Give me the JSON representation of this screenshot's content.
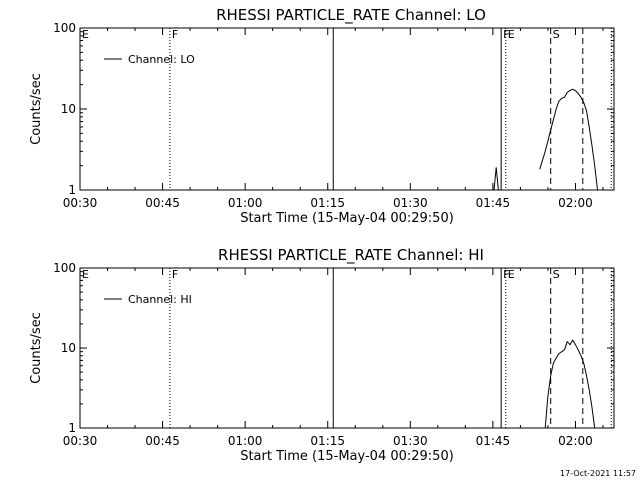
{
  "chart_data": [
    {
      "type": "line",
      "title": "RHESSI PARTICLE_RATE Channel: LO",
      "xlabel": "Start Time (15-May-04 00:29:50)",
      "ylabel": "Counts/sec",
      "yscale": "log",
      "ylim": [
        1,
        100
      ],
      "xlim": [
        "00:30",
        "02:07"
      ],
      "xticks": [
        "00:30",
        "00:45",
        "01:00",
        "01:15",
        "01:30",
        "01:45",
        "02:00"
      ],
      "yticks": [
        "1",
        "10",
        "100"
      ],
      "legend": {
        "label": "Channel: LO",
        "placement": "top-left"
      },
      "grid": false,
      "series": [
        {
          "name": "Channel: LO",
          "segments": [
            {
              "x": [
                "01:45:12",
                "01:45:36",
                "01:46:00"
              ],
              "y": [
                1.0,
                1.9,
                1.0
              ]
            },
            {
              "x": [
                "01:53:30",
                "01:54:30",
                "01:55:30",
                "01:56:30",
                "01:57:00",
                "01:57:30",
                "01:58:00",
                "01:58:30",
                "01:59:00",
                "01:59:30",
                "02:00:00",
                "02:00:30",
                "02:01:00",
                "02:01:30",
                "02:02:00",
                "02:02:30",
                "02:03:00",
                "02:03:30",
                "02:04:00"
              ],
              "y": [
                1.8,
                3.0,
                5.5,
                10.0,
                12.5,
                13.5,
                14.0,
                16.0,
                17.0,
                17.5,
                16.8,
                15.5,
                14.0,
                12.0,
                9.5,
                6.0,
                3.5,
                2.0,
                1.0
              ]
            }
          ]
        }
      ],
      "markers": [
        {
          "label": "E",
          "time": "00:30:00",
          "style": "solid"
        },
        {
          "label": "F",
          "time": "00:46:20",
          "style": "dotted"
        },
        {
          "label": "",
          "time": "01:16:00",
          "style": "solid"
        },
        {
          "label": "F",
          "time": "01:46:30",
          "style": "solid"
        },
        {
          "label": "E",
          "time": "01:47:20",
          "style": "dotted"
        },
        {
          "label": "S",
          "time": "01:55:30",
          "style": "dashed"
        },
        {
          "label": "",
          "time": "02:01:20",
          "style": "dashed"
        },
        {
          "label": "",
          "time": "02:06:30",
          "style": "dotted"
        }
      ]
    },
    {
      "type": "line",
      "title": "RHESSI PARTICLE_RATE Channel: HI",
      "xlabel": "Start Time (15-May-04 00:29:50)",
      "ylabel": "Counts/sec",
      "yscale": "log",
      "ylim": [
        1,
        100
      ],
      "xlim": [
        "00:30",
        "02:07"
      ],
      "xticks": [
        "00:30",
        "00:45",
        "01:00",
        "01:15",
        "01:30",
        "01:45",
        "02:00"
      ],
      "yticks": [
        "1",
        "10",
        "100"
      ],
      "legend": {
        "label": "Channel: HI",
        "placement": "top-left"
      },
      "grid": false,
      "series": [
        {
          "name": "Channel: HI",
          "segments": [
            {
              "x": [
                "01:54:30",
                "01:55:00",
                "01:55:30",
                "01:56:00",
                "01:56:30",
                "01:57:00",
                "01:57:30",
                "01:58:00",
                "01:58:30",
                "01:59:00",
                "01:59:30",
                "02:00:00",
                "02:00:30",
                "02:01:00",
                "02:01:30",
                "02:02:00",
                "02:02:30",
                "02:03:00",
                "02:03:30"
              ],
              "y": [
                1.0,
                2.5,
                4.5,
                6.5,
                7.5,
                8.5,
                9.0,
                9.5,
                12.0,
                11.0,
                12.5,
                11.0,
                9.5,
                8.0,
                6.5,
                4.5,
                3.0,
                1.8,
                1.0
              ]
            }
          ]
        }
      ],
      "markers": [
        {
          "label": "E",
          "time": "00:30:00",
          "style": "solid"
        },
        {
          "label": "F",
          "time": "00:46:20",
          "style": "dotted"
        },
        {
          "label": "",
          "time": "01:16:00",
          "style": "solid"
        },
        {
          "label": "F",
          "time": "01:46:30",
          "style": "solid"
        },
        {
          "label": "E",
          "time": "01:47:20",
          "style": "dotted"
        },
        {
          "label": "S",
          "time": "01:55:30",
          "style": "dashed"
        },
        {
          "label": "",
          "time": "02:01:20",
          "style": "dashed"
        },
        {
          "label": "",
          "time": "02:06:30",
          "style": "dotted"
        }
      ]
    }
  ],
  "footer": {
    "timestamp": "17-Oct-2021 11:57"
  }
}
